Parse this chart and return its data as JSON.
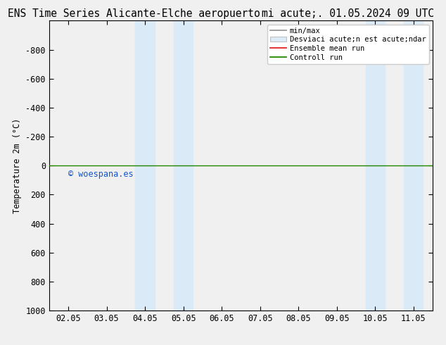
{
  "title_left": "ENS Time Series Alicante-Elche aeropuerto",
  "title_right": "mi acute;. 01.05.2024 09 UTC",
  "ylabel": "Temperature 2m (°C)",
  "xlim": [
    1.5,
    11.5
  ],
  "ylim": [
    1000,
    -1000
  ],
  "yticks": [
    -800,
    -600,
    -400,
    -200,
    0,
    200,
    400,
    600,
    800,
    1000
  ],
  "xtick_labels": [
    "02.05",
    "03.05",
    "04.05",
    "05.05",
    "06.05",
    "07.05",
    "08.05",
    "09.05",
    "10.05",
    "11.05"
  ],
  "xtick_positions": [
    2,
    3,
    4,
    5,
    6,
    7,
    8,
    9,
    10,
    11
  ],
  "shaded_regions": [
    [
      3.75,
      4.25
    ],
    [
      4.75,
      5.25
    ],
    [
      9.75,
      10.25
    ],
    [
      10.75,
      11.25
    ]
  ],
  "shaded_color": "#daeaf7",
  "hline_color_control": "#228800",
  "hline_linewidth": 1.0,
  "watermark_text": "© woespana.es",
  "watermark_color": "#1155cc",
  "legend_items": [
    {
      "label": "min/max",
      "color": "#999999",
      "type": "line"
    },
    {
      "label": "Desviaci acute;n est acute;ndar",
      "color": "#daeaf7",
      "type": "patch"
    },
    {
      "label": "Ensemble mean run",
      "color": "#dd2222",
      "type": "line"
    },
    {
      "label": "Controll run",
      "color": "#228800",
      "type": "line"
    }
  ],
  "bg_color": "#f0f0f0",
  "plot_bg_color": "#f0f0f0",
  "font_size": 8.5,
  "title_font_size": 10.5
}
